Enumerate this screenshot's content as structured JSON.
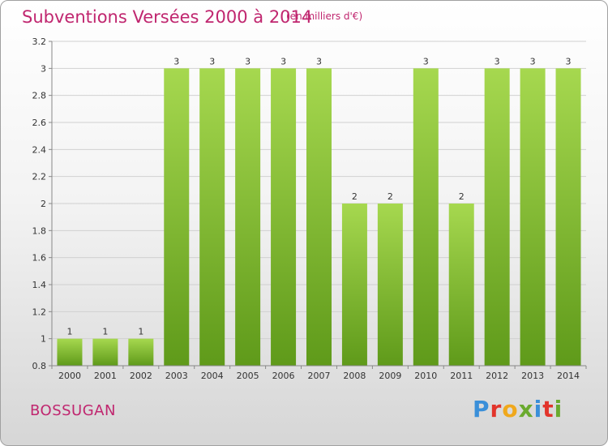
{
  "title": "Subventions Versées 2000 à 2014",
  "subtitle": "(en milliers d'€)",
  "place": "BOSSUGAN",
  "logo": {
    "text": "Proxiti",
    "colors": [
      "#3a8fd9",
      "#e2342b",
      "#f0a81c",
      "#6aaa2e",
      "#3a8fd9",
      "#e2342b",
      "#6aaa2e"
    ]
  },
  "chart_data": {
    "type": "bar",
    "categories": [
      "2000",
      "2001",
      "2002",
      "2003",
      "2004",
      "2005",
      "2006",
      "2007",
      "2008",
      "2009",
      "2010",
      "2011",
      "2012",
      "2013",
      "2014"
    ],
    "values": [
      1,
      1,
      1,
      3,
      3,
      3,
      3,
      3,
      2,
      2,
      3,
      2,
      3,
      3,
      3
    ],
    "value_labels": [
      "1",
      "1",
      "1",
      "3",
      "3",
      "3",
      "3",
      "3",
      "2",
      "2",
      "3",
      "2",
      "3",
      "3",
      "3"
    ],
    "ylim": [
      0.8,
      3.2
    ],
    "yticks": [
      0.8,
      1,
      1.2,
      1.4,
      1.6,
      1.8,
      2,
      2.2,
      2.4,
      2.6,
      2.8,
      3,
      3.2
    ],
    "ytick_labels": [
      "0.8",
      "1",
      "1.2",
      "1.4",
      "1.6",
      "1.8",
      "2",
      "2.2",
      "2.4",
      "2.6",
      "2.8",
      "3",
      "3.2"
    ],
    "grid": true,
    "bar_color": "#7fbb2e",
    "bar_color_light": "#a6d84f"
  }
}
